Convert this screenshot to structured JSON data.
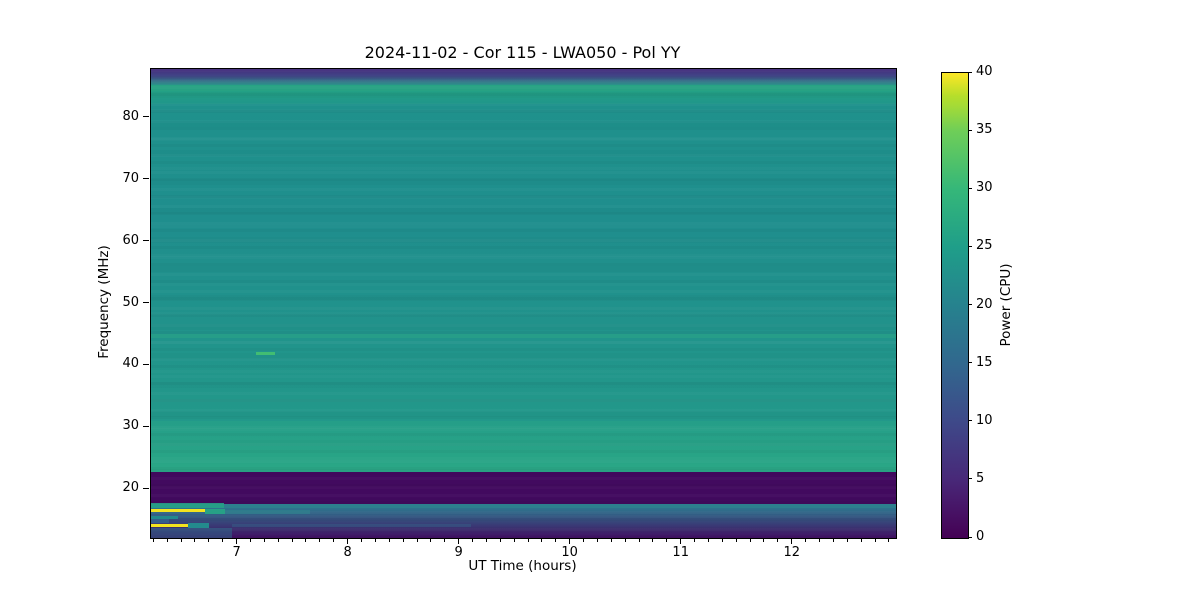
{
  "figure": {
    "background_color": "#ffffff"
  },
  "chart_data": {
    "type": "heatmap",
    "subtype": "dynamic-spectrum-spectrogram",
    "title": "2024-11-02 - Cor 115 - LWA050 - Pol YY",
    "xlabel": "UT Time (hours)",
    "ylabel": "Frequency (MHz)",
    "colorbar_label": "Power (CPU)",
    "colormap": "viridis",
    "grid": false,
    "x_range": [
      6.22,
      12.93
    ],
    "y_range": [
      12.1,
      87.9
    ],
    "x_ticks": [
      7,
      8,
      9,
      10,
      11,
      12
    ],
    "x_minor_tick_step": 0.125,
    "y_ticks": [
      20,
      30,
      40,
      50,
      60,
      70,
      80
    ],
    "colorbar_range": [
      0,
      40
    ],
    "colorbar_ticks": [
      0,
      5,
      10,
      15,
      20,
      25,
      30,
      35,
      40
    ],
    "bands": [
      {
        "label": "top-edge-dark",
        "f_high": 87.9,
        "f_low": 86.7,
        "power": 6,
        "color_top": "#452c7c",
        "color_bottom": "#414687"
      },
      {
        "label": "top-transition",
        "f_high": 86.7,
        "f_low": 85.3,
        "power": 13,
        "color_top": "#414687",
        "color_bottom": "#2c938a"
      },
      {
        "label": "bright-green-line-85",
        "f_high": 85.3,
        "f_low": 84.4,
        "power": 23,
        "color_top": "#27a283",
        "color_bottom": "#27a283"
      },
      {
        "label": "upper-green",
        "f_high": 84.4,
        "f_low": 82.3,
        "power": 22,
        "color_top": "#23a085",
        "color_bottom": "#20968a"
      },
      {
        "label": "main-body-upper",
        "f_high": 82.3,
        "f_low": 63.0,
        "power": 20,
        "color_top": "#1f918c",
        "color_bottom": "#1f8e8d"
      },
      {
        "label": "main-body-mid",
        "f_high": 63.0,
        "f_low": 45.0,
        "power": 20,
        "color_top": "#1f8e8d",
        "color_bottom": "#21938b"
      },
      {
        "label": "light-row-44mhz",
        "f_high": 45.0,
        "f_low": 44.4,
        "power": 22,
        "color_top": "#269d88",
        "color_bottom": "#269d88"
      },
      {
        "label": "main-body-lower",
        "f_high": 44.4,
        "f_low": 31.0,
        "power": 21,
        "color_top": "#21948b",
        "color_bottom": "#22988a"
      },
      {
        "label": "greener-band",
        "f_high": 31.0,
        "f_low": 24.0,
        "power": 23,
        "color_top": "#259e88",
        "color_bottom": "#29a586"
      },
      {
        "label": "green-band-23mhz",
        "f_high": 24.0,
        "f_low": 22.7,
        "power": 24,
        "color_top": "#2aa686",
        "color_bottom": "#2aa686"
      },
      {
        "label": "dark-blanked-band",
        "f_high": 22.7,
        "f_low": 17.65,
        "power": 1,
        "color_top": "#420a5f",
        "color_bottom": "#420a5f"
      },
      {
        "label": "teal-row-17mhz",
        "f_high": 17.65,
        "f_low": 16.9,
        "power": 15,
        "color_top": "#2d7f8e",
        "color_bottom": "#2d7f8e"
      },
      {
        "label": "bottom-falloff",
        "f_high": 16.9,
        "f_low": 12.1,
        "power": 12,
        "color_top": "#2e748e",
        "color_bottom": "#420f63"
      }
    ],
    "features": [
      {
        "name": "transient-dash-42mhz",
        "t": [
          7.17,
          7.34
        ],
        "f": [
          41.6,
          42.1
        ],
        "power": 28,
        "color": "#41bd72",
        "opacity": 1
      },
      {
        "name": "left-bright-row-17mhz",
        "t": [
          6.22,
          6.88
        ],
        "f": [
          16.9,
          17.8
        ],
        "power": 22,
        "color": "#26a186",
        "opacity": 0.9
      },
      {
        "name": "rfi-line-16.5mhz",
        "t": [
          6.22,
          6.71
        ],
        "f": [
          16.35,
          16.75
        ],
        "power": 40,
        "color": "#f2e41f",
        "opacity": 1
      },
      {
        "name": "rfi-tail-16.5mhz",
        "t": [
          6.71,
          6.89
        ],
        "f": [
          15.9,
          16.75
        ],
        "power": 22,
        "color": "#27a186",
        "opacity": 1
      },
      {
        "name": "faint-row-16mhz",
        "t": [
          6.89,
          7.65
        ],
        "f": [
          16.0,
          16.6
        ],
        "power": 16,
        "color": "#2d8a8e",
        "opacity": 0.55
      },
      {
        "name": "teal-segment-15mhz",
        "t": [
          6.22,
          6.46
        ],
        "f": [
          15.1,
          15.6
        ],
        "power": 16,
        "color": "#21898d",
        "opacity": 1
      },
      {
        "name": "blue-segment-15mhz",
        "t": [
          6.22,
          6.38
        ],
        "f": [
          14.6,
          15.1
        ],
        "power": 10,
        "color": "#33628d",
        "opacity": 0.85
      },
      {
        "name": "rfi-line-14mhz",
        "t": [
          6.22,
          6.55
        ],
        "f": [
          13.95,
          14.35
        ],
        "power": 40,
        "color": "#f2e41f",
        "opacity": 1
      },
      {
        "name": "rfi-tail-14mhz",
        "t": [
          6.55,
          6.74
        ],
        "f": [
          13.7,
          14.5
        ],
        "power": 17,
        "color": "#238a8d",
        "opacity": 1
      },
      {
        "name": "faint-row-14mhz",
        "t": [
          6.95,
          9.1
        ],
        "f": [
          13.9,
          14.3
        ],
        "power": 12,
        "color": "#34708e",
        "opacity": 0.35
      },
      {
        "name": "left-glow-bottom",
        "t": [
          6.22,
          6.95
        ],
        "f": [
          12.1,
          13.7
        ],
        "power": 12,
        "color": "#2c6f8e",
        "opacity": 0.5
      }
    ]
  }
}
